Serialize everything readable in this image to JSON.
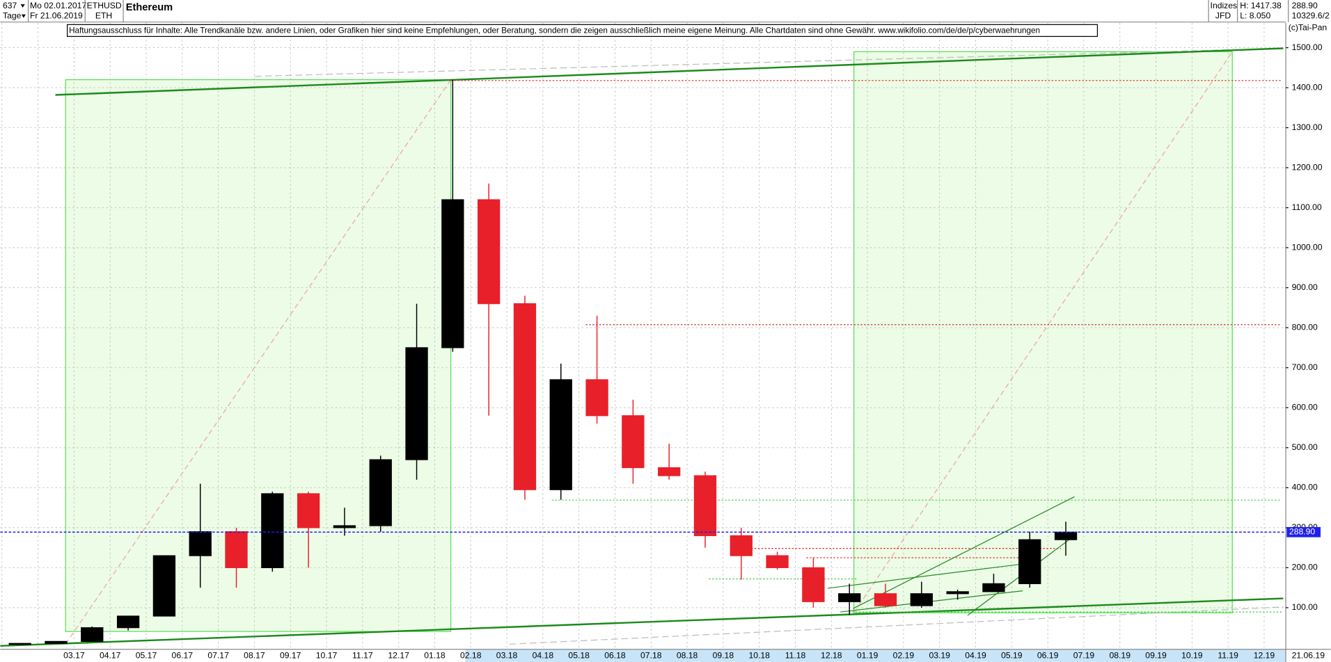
{
  "header": {
    "count": "637",
    "start_date": "Mo 02.01.2017",
    "symbol": "ETHUSD",
    "currency": "ETH",
    "name": "Ethereum",
    "period": "Tage",
    "end_date": "Fr 21.06.2019",
    "market": "Indizes",
    "broker": "JFD",
    "high": "H: 1417.38",
    "low": "L: 8.050",
    "last": "288.90",
    "volume": "10329.6/2",
    "copyright": "(c)Tai-Pan",
    "disclaimer": "Haftungsausschluss für Inhalte: Alle Trendkanäle bzw. andere Linien, oder Grafiken hier sind keine Empfehlungen, oder Beratung, sondern die zeigen ausschließlich meine eigene Meinung. Alle Chartdaten sind ohne Gewähr.  www.wikifolio.com/de/de/p/cyberwaehrungen"
  },
  "chart_data": {
    "type": "candlestick",
    "categories": [
      null,
      null,
      "03.17",
      "04.17",
      "05.17",
      "06.17",
      "07.17",
      "08.17",
      "09.17",
      "10.17",
      "11.17",
      "12.17",
      "01.18",
      "02.18",
      "03.18",
      "04.18",
      "05.18",
      "06.18",
      "07.18",
      "08.18",
      "09.18",
      "10.18",
      "11.18",
      "12.18",
      "01.19",
      "02.19",
      "03.19",
      "04.19",
      "05.19",
      "06.19",
      "07.19",
      "08.19",
      "09.19",
      "10.19",
      "11.19",
      "12.19"
    ],
    "open": [
      8,
      10.7,
      15.7,
      50,
      79,
      230,
      290,
      200,
      385,
      300,
      305,
      470,
      750,
      1120,
      860,
      395,
      670,
      580,
      450,
      430,
      280,
      230,
      200,
      115,
      135,
      105,
      135,
      140,
      160,
      270,
      null,
      null,
      null,
      null,
      null,
      null
    ],
    "high": [
      11,
      16,
      53,
      80,
      230,
      410,
      300,
      390,
      390,
      350,
      480,
      860,
      1420,
      1160,
      880,
      710,
      830,
      620,
      510,
      440,
      300,
      240,
      225,
      160,
      160,
      165,
      145,
      185,
      290,
      315,
      null,
      null,
      null,
      null,
      null,
      null
    ],
    "low": [
      8,
      10.5,
      15.5,
      43,
      79,
      150,
      150,
      190,
      200,
      280,
      290,
      420,
      740,
      580,
      370,
      370,
      560,
      410,
      420,
      250,
      170,
      195,
      100,
      82,
      100,
      100,
      120,
      140,
      150,
      230,
      null,
      null,
      null,
      null,
      null,
      null
    ],
    "close": [
      10.7,
      15.7,
      50,
      79,
      230,
      290,
      200,
      385,
      300,
      305,
      470,
      750,
      1120,
      860,
      395,
      670,
      580,
      450,
      430,
      280,
      230,
      200,
      115,
      135,
      105,
      135,
      140,
      160,
      270,
      289,
      null,
      null,
      null,
      null,
      null,
      null
    ],
    "up_color": "#000000",
    "down_color": "#e8202a",
    "ylim": [
      -4,
      1562
    ],
    "yticks": [
      {
        "value": 100,
        "label": "100.00"
      },
      {
        "value": 200,
        "label": "200.00"
      },
      {
        "value": 300,
        "label": "300.00"
      },
      {
        "value": 400,
        "label": "400.00"
      },
      {
        "value": 500,
        "label": "500.00"
      },
      {
        "value": 600,
        "label": "600.00"
      },
      {
        "value": 700,
        "label": "700.00"
      },
      {
        "value": 800,
        "label": "800.00"
      },
      {
        "value": 900,
        "label": "900.00"
      },
      {
        "value": 1000,
        "label": "1000.00"
      },
      {
        "value": 1100,
        "label": "1100.00"
      },
      {
        "value": 1200,
        "label": "1200.00"
      },
      {
        "value": 1300,
        "label": "1300.00"
      },
      {
        "value": 1400,
        "label": "1400.00"
      },
      {
        "value": 1500,
        "label": "1500.00"
      }
    ],
    "last_value": 288.9,
    "last_value_label": "288.90",
    "last_value_color": "#2020ee",
    "x_end_label": "21.06.19",
    "grid": true
  }
}
